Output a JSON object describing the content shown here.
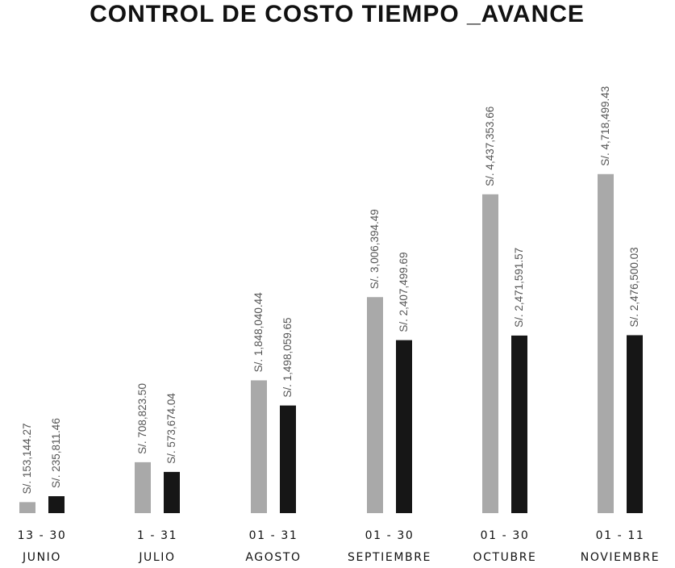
{
  "chart_data": {
    "type": "bar",
    "title": "CONTROL DE COSTO TIEMPO _AVANCE",
    "categories": [
      {
        "range": "13 - 30",
        "month": "JUNIO"
      },
      {
        "range": "1 - 31",
        "month": "JULIO"
      },
      {
        "range": "01 - 31",
        "month": "AGOSTO"
      },
      {
        "range": "01 - 30",
        "month": "SEPTIEMBRE"
      },
      {
        "range": "01 - 30",
        "month": "OCTUBRE"
      },
      {
        "range": "01 - 11",
        "month": "NOVIEMBRE"
      }
    ],
    "series": [
      {
        "color": "#a9a9a9",
        "values": [
          153144.27,
          708823.5,
          1848040.44,
          3006394.49,
          4437353.66,
          4718499.43
        ],
        "labels": [
          "S/. 153,144.27",
          "S/. 708,823.50",
          "S/. 1,848,040.44",
          "S/. 3,006,394.49",
          "S/. 4,437,353.66",
          "S/. 4,718,499.43"
        ]
      },
      {
        "color": "#161616",
        "values": [
          235811.46,
          573674.04,
          1498059.65,
          2407499.69,
          2471591.57,
          2476500.03
        ],
        "labels": [
          "S/. 235,811.46",
          "S/. 573,674.04",
          "S/. 1,498,059.65",
          "S/. 2,407,499.69",
          "S/. 2,471,591.57",
          "S/. 2,476,500.03"
        ]
      }
    ],
    "ylim": [
      0,
      5300000
    ],
    "grid": false,
    "legend": "none"
  }
}
